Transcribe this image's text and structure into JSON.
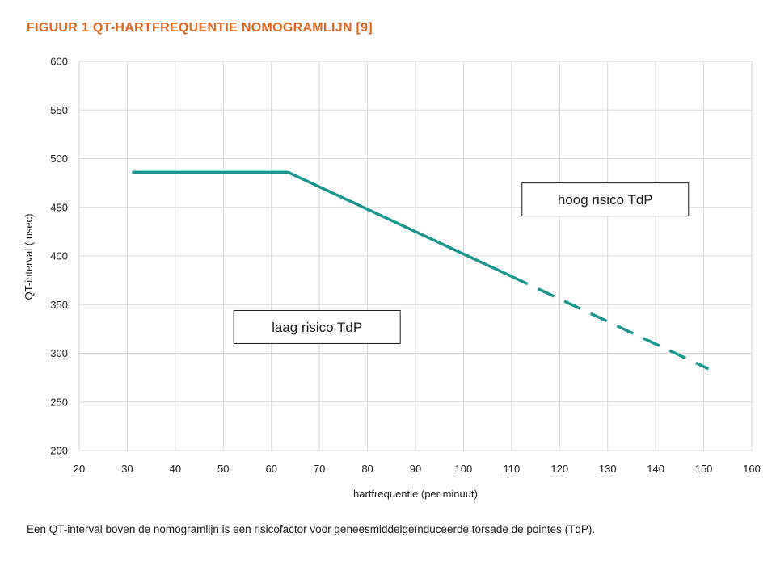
{
  "figure_title": "FIGUUR 1  QT-HARTFREQUENTIE NOMOGRAMLIJN [9]",
  "caption": "Een QT-interval boven de nomogramlijn is een risicofactor voor geneesmiddelgeïnduceerde torsade de pointes (TdP).",
  "colors": {
    "title": "#e0651b",
    "line": "#17978f",
    "grid": "#d9d9d9"
  },
  "chart_data": {
    "type": "line",
    "title": "FIGUUR 1  QT-HARTFREQUENTIE NOMOGRAMLIJN [9]",
    "xlabel": "hartfrequentie (per minuut)",
    "ylabel": "QT-interval (msec)",
    "xlim": [
      20,
      160
    ],
    "ylim": [
      200,
      600
    ],
    "x_ticks": [
      20,
      30,
      40,
      50,
      60,
      70,
      80,
      90,
      100,
      110,
      120,
      130,
      140,
      150,
      160
    ],
    "y_ticks": [
      200,
      250,
      300,
      350,
      400,
      450,
      500,
      550,
      600
    ],
    "grid": true,
    "series": [
      {
        "style": "solid",
        "points": [
          [
            31,
            486
          ],
          [
            63.5,
            486
          ],
          [
            110,
            379
          ]
        ]
      },
      {
        "style": "dashed",
        "points": [
          [
            110,
            379
          ],
          [
            151,
            284
          ]
        ]
      }
    ],
    "annotations": [
      {
        "text": "hoog risico TdP",
        "x": 129.5,
        "y": 458
      },
      {
        "text": "laag risico TdP",
        "x": 69.5,
        "y": 327
      }
    ]
  }
}
